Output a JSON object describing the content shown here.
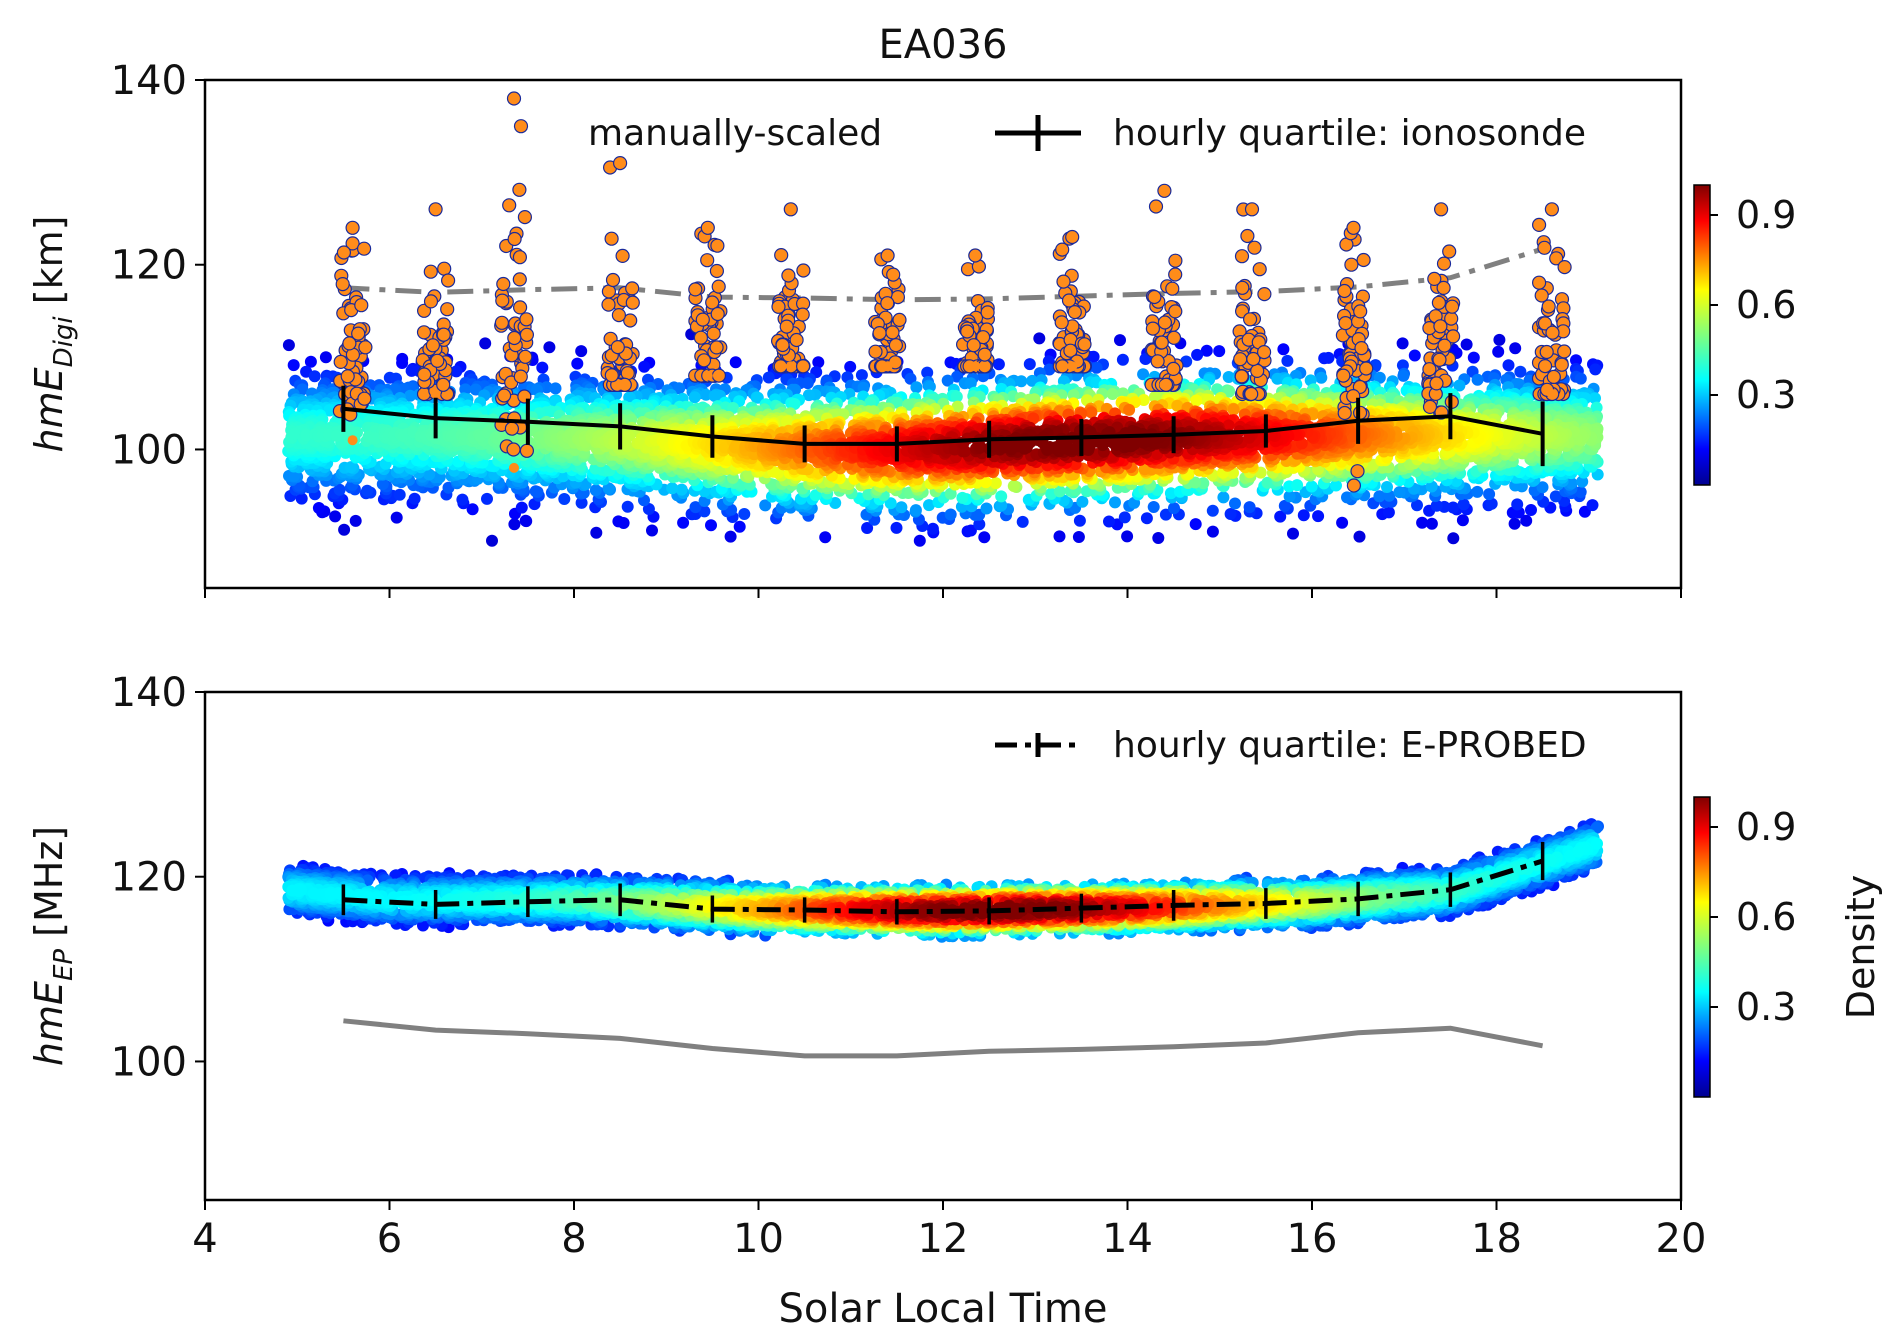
{
  "title": "EA036",
  "xlabel": "Solar Local Time",
  "xticks": [
    4,
    6,
    8,
    10,
    12,
    14,
    16,
    18,
    20
  ],
  "colorbar": {
    "label": "Density",
    "ticks": [
      "0.3",
      "0.6",
      "0.9"
    ]
  },
  "chart_data": [
    {
      "type": "scatter",
      "title": "EA036",
      "ylabel_main": "hmE",
      "ylabel_sub": "Digi",
      "ylabel_unit": " [km]",
      "xlim": [
        4,
        20
      ],
      "ylim": [
        85,
        140
      ],
      "yticks": [
        100,
        120,
        140
      ],
      "grid": false,
      "legend_placement": "top",
      "legend": [
        {
          "label": "manually-scaled",
          "marker": "star",
          "color": "#ff8c1a"
        },
        {
          "label": "hourly quartile: ionosonde",
          "style": "solid",
          "color": "#000000"
        }
      ],
      "density_cloud": {
        "x_range": [
          4.9,
          19.1
        ],
        "y_center": 101.5,
        "y_spread": [
          90,
          113
        ],
        "colormap": "jet"
      },
      "quartile_series": {
        "name": "hourly quartile: ionosonde",
        "x": [
          5.5,
          6.5,
          7.5,
          8.5,
          9.5,
          10.5,
          11.5,
          12.5,
          13.5,
          14.5,
          15.5,
          16.5,
          17.5,
          18.5
        ],
        "y": [
          104.4,
          103.4,
          103.0,
          102.5,
          101.4,
          100.6,
          100.6,
          101.1,
          101.3,
          101.6,
          102.0,
          103.1,
          103.6,
          101.7
        ],
        "err": [
          2.5,
          2.2,
          2.5,
          2.5,
          2.3,
          2.0,
          1.9,
          2.0,
          2.0,
          2.0,
          1.8,
          2.5,
          2.5,
          3.5
        ]
      },
      "reference_series": {
        "style": "dashdot",
        "color": "#808080",
        "x": [
          5.5,
          6.5,
          7.5,
          8.5,
          9.5,
          10.5,
          11.5,
          12.5,
          13.5,
          14.5,
          15.5,
          16.5,
          17.5,
          18.5
        ],
        "y": [
          117.5,
          117.0,
          117.3,
          117.5,
          116.5,
          116.4,
          116.2,
          116.3,
          116.6,
          116.9,
          117.1,
          117.6,
          118.6,
          121.7
        ]
      },
      "manual_clusters": [
        {
          "x": 5.6,
          "ymin": 101,
          "ymax": 124
        },
        {
          "x": 6.5,
          "ymin": 106,
          "ymax": 126
        },
        {
          "x": 7.35,
          "ymin": 98,
          "ymax": 138
        },
        {
          "x": 8.5,
          "ymin": 107,
          "ymax": 131
        },
        {
          "x": 9.45,
          "ymin": 108,
          "ymax": 124
        },
        {
          "x": 10.35,
          "ymin": 109,
          "ymax": 126
        },
        {
          "x": 11.4,
          "ymin": 109,
          "ymax": 121
        },
        {
          "x": 12.35,
          "ymin": 109,
          "ymax": 121
        },
        {
          "x": 13.4,
          "ymin": 109,
          "ymax": 123
        },
        {
          "x": 14.4,
          "ymin": 107,
          "ymax": 128
        },
        {
          "x": 15.35,
          "ymin": 106,
          "ymax": 126
        },
        {
          "x": 16.45,
          "ymin": 96,
          "ymax": 124
        },
        {
          "x": 17.4,
          "ymin": 104,
          "ymax": 126
        },
        {
          "x": 18.6,
          "ymin": 106,
          "ymax": 126
        }
      ]
    },
    {
      "type": "scatter",
      "ylabel_main": "hmE",
      "ylabel_sub": "EP",
      "ylabel_unit": " [MHz]",
      "xlim": [
        4,
        20
      ],
      "ylim": [
        85,
        140
      ],
      "yticks": [
        100,
        120,
        140
      ],
      "grid": false,
      "legend_placement": "top-right",
      "legend": [
        {
          "label": "hourly quartile: E-PROBED",
          "style": "dashdot",
          "color": "#000000"
        }
      ],
      "density_cloud": {
        "x_range": [
          4.9,
          19.1
        ],
        "colormap": "jet",
        "y_center": [
          [
            5,
            118.5
          ],
          [
            6,
            117.5
          ],
          [
            8,
            117.5
          ],
          [
            10,
            116.5
          ],
          [
            12,
            116.3
          ],
          [
            14,
            116.6
          ],
          [
            16,
            117.2
          ],
          [
            17.5,
            118.4
          ],
          [
            18.5,
            121.5
          ],
          [
            19.1,
            123.5
          ]
        ],
        "y_spread": 3
      },
      "quartile_series": {
        "name": "hourly quartile: E-PROBED",
        "x": [
          5.5,
          6.5,
          7.5,
          8.5,
          9.5,
          10.5,
          11.5,
          12.5,
          13.5,
          14.5,
          15.5,
          16.5,
          17.5,
          18.5
        ],
        "y": [
          117.5,
          117.0,
          117.3,
          117.5,
          116.5,
          116.4,
          116.2,
          116.3,
          116.6,
          116.9,
          117.1,
          117.6,
          118.6,
          121.7
        ],
        "err": [
          0.8,
          0.7,
          0.8,
          0.9,
          0.6,
          0.5,
          0.5,
          0.6,
          0.7,
          0.8,
          0.8,
          1.0,
          1.0,
          1.2
        ]
      },
      "reference_series": {
        "style": "solid",
        "color": "#808080",
        "x": [
          5.5,
          6.5,
          7.5,
          8.5,
          9.5,
          10.5,
          11.5,
          12.5,
          13.5,
          14.5,
          15.5,
          16.5,
          17.5,
          18.5
        ],
        "y": [
          104.4,
          103.4,
          103.0,
          102.5,
          101.4,
          100.6,
          100.6,
          101.1,
          101.3,
          101.6,
          102.0,
          103.1,
          103.6,
          101.7
        ]
      }
    }
  ]
}
